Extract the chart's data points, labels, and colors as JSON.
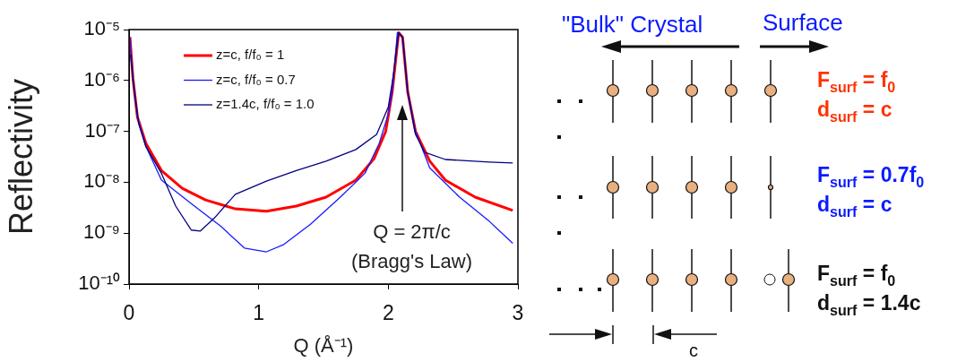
{
  "chart_data": {
    "type": "line",
    "ylabel": "Reflectivity",
    "xlabel": "Q (Å⁻¹)",
    "xlim": [
      0,
      3
    ],
    "xticks": [
      0,
      1,
      2,
      3
    ],
    "ylim": [
      1e-10,
      1e-05
    ],
    "yticks": [
      {
        "value": 1e-10,
        "label": "10⁻¹⁰"
      },
      {
        "value": 1e-09,
        "label": "10⁻⁹"
      },
      {
        "value": 1e-08,
        "label": "10⁻⁸"
      },
      {
        "value": 1e-07,
        "label": "10⁻⁷"
      },
      {
        "value": 1e-06,
        "label": "10⁻⁶"
      },
      {
        "value": 1e-05,
        "label": "10⁻⁵"
      }
    ],
    "log": "y",
    "grid": false,
    "legend": "top left",
    "marker": "none",
    "line_style": "solid",
    "series": [
      {
        "name": "z=c, f/f₀ = 1",
        "color": "#ff0000",
        "x": [
          0.007,
          0.03,
          0.065,
          0.13,
          0.25,
          0.41,
          0.59,
          0.82,
          1.06,
          1.29,
          1.52,
          1.75,
          1.89,
          1.98,
          2.03,
          2.08,
          2.11,
          2.15,
          2.21,
          2.32,
          2.44,
          2.67,
          2.96
        ],
        "values": [
          7.1e-06,
          1.1e-06,
          1.9e-07,
          5.8e-08,
          1.7e-08,
          7.6e-09,
          4.5e-09,
          3e-09,
          2.7e-09,
          3.4e-09,
          5.1e-09,
          1.1e-08,
          2.9e-08,
          1e-07,
          5.9e-07,
          8.7e-06,
          7.1e-06,
          5.9e-07,
          1e-07,
          2.6e-08,
          1.1e-08,
          5.1e-09,
          2.8e-09
        ]
      },
      {
        "name": "z=c, f/f₀ = 0.7",
        "color": "#1a1aff",
        "x": [
          0.007,
          0.03,
          0.065,
          0.13,
          0.25,
          0.48,
          0.71,
          0.89,
          1.06,
          1.19,
          1.4,
          1.63,
          1.82,
          1.93,
          2.0,
          2.03,
          2.07,
          2.11,
          2.15,
          2.21,
          2.32,
          2.55,
          2.78,
          2.96
        ],
        "values": [
          7.1e-06,
          1.1e-06,
          1.9e-07,
          5.1e-08,
          1.1e-08,
          3.8e-09,
          1.35e-09,
          5.1e-10,
          4.3e-10,
          5.9e-10,
          1.5e-09,
          5.1e-09,
          1.5e-08,
          5.8e-08,
          2.2e-07,
          5.9e-07,
          8.7e-06,
          7.1e-06,
          5.9e-07,
          1e-07,
          1.9e-08,
          5.1e-09,
          1.7e-09,
          6.3e-10
        ]
      },
      {
        "name": "z=1.4c, f/f₀ = 1.0",
        "color": "#000080",
        "x": [
          0.012,
          0.04,
          0.075,
          0.13,
          0.25,
          0.36,
          0.48,
          0.55,
          0.66,
          0.82,
          1.06,
          1.29,
          1.52,
          1.75,
          1.91,
          2.0,
          2.04,
          2.08,
          2.11,
          2.15,
          2.21,
          2.28,
          2.44,
          2.78,
          2.96
        ],
        "values": [
          3.2e-06,
          6.3e-07,
          1.4e-07,
          5e-08,
          1.5e-08,
          3.4e-09,
          1.15e-09,
          1.1e-09,
          2e-09,
          5.8e-09,
          1.05e-08,
          1.7e-08,
          2.6e-08,
          4.4e-08,
          8.7e-08,
          3e-07,
          1.3e-06,
          8.7e-06,
          7.1e-06,
          5.9e-07,
          8.7e-08,
          3.9e-08,
          2.8e-08,
          2.5e-08,
          2.4e-08
        ]
      }
    ],
    "annotations": [
      "Q = 2π/c\n(Bragg's Law)",
      "\"Bulk\" Crystal",
      "Surface",
      "F$_{surf}$ =  f$_{0}$",
      "d$_{surf}$  = c",
      "F$_{surf}$ =  0.7f$_{0}$",
      "d$_{surf}$  = c",
      "F$_{surf}$ =  f$_{0}$",
      "d$_{surf}$  = 1.4c",
      "c"
    ]
  }
}
